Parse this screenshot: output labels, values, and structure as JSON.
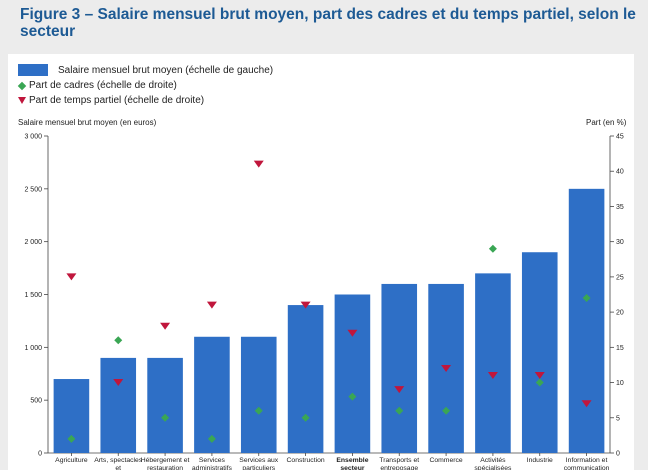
{
  "figure_title": "Figure 3 – Salaire mensuel brut moyen, part des cadres et du temps partiel, selon le secteur",
  "legend": {
    "bars": "Salaire mensuel brut moyen (échelle de gauche)",
    "diamonds": "Part de cadres (échelle de droite)",
    "triangles": "Part de temps partiel (échelle de droite)"
  },
  "colors": {
    "bar": "#2e6fc6",
    "diamond": "#3aa654",
    "triangle": "#c0163c",
    "title": "#1d5a94"
  },
  "chart_data": {
    "type": "bar",
    "ylabel_left": "Salaire mensuel brut moyen (en euros)",
    "ylabel_right": "Part (en %)",
    "ylim_left": [
      0,
      3000
    ],
    "ylim_right": [
      0,
      45
    ],
    "yticks_left": [
      "0",
      "500",
      "1 000",
      "1 500",
      "2 000",
      "2 500",
      "3 000"
    ],
    "yticks_right": [
      "0",
      "5",
      "10",
      "15",
      "20",
      "25",
      "30",
      "35",
      "40",
      "45"
    ],
    "categories": [
      "Agriculture",
      "Arts, spectacles et",
      "Hébergement et restauration",
      "Services administratifs",
      "Services aux particuliers",
      "Construction",
      "Ensemble secteur",
      "Transports et entreposage",
      "Commerce",
      "Activités spécialisées",
      "Industrie",
      "Information et communication"
    ],
    "highlight_category": "Ensemble secteur",
    "series": [
      {
        "name": "Salaire mensuel brut moyen (échelle de gauche)",
        "kind": "bar",
        "axis": "left",
        "values": [
          700,
          900,
          900,
          1100,
          1100,
          1400,
          1500,
          1600,
          1600,
          1700,
          1900,
          2500
        ]
      },
      {
        "name": "Part de cadres (échelle de droite)",
        "kind": "diamond",
        "axis": "right",
        "values": [
          2,
          16,
          5,
          2,
          6,
          5,
          8,
          6,
          6,
          29,
          10,
          22
        ]
      },
      {
        "name": "Part de temps partiel (échelle de droite)",
        "kind": "triangle",
        "axis": "right",
        "values": [
          25,
          10,
          18,
          21,
          41,
          21,
          17,
          9,
          12,
          11,
          11,
          7
        ]
      }
    ],
    "grid": false
  }
}
